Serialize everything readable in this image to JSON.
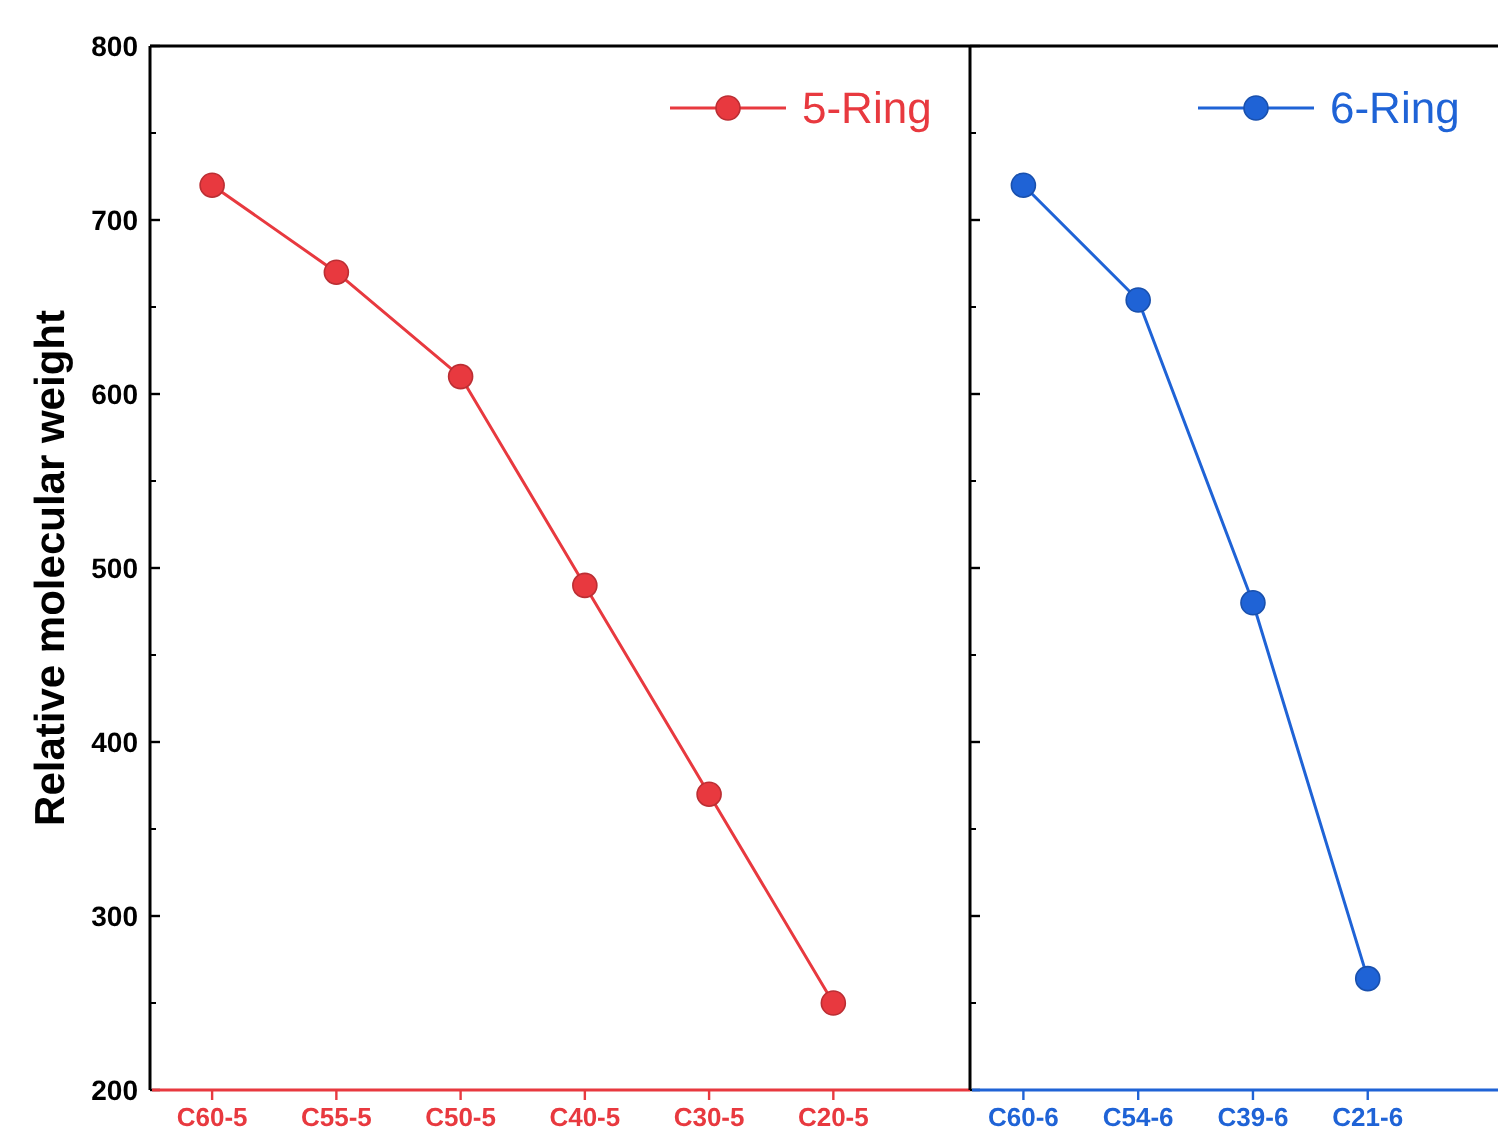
{
  "chart_data": [
    {
      "type": "line",
      "ylabel": "Relative molecular weight",
      "categories": [
        "C60-5",
        "C55-5",
        "C50-5",
        "C40-5",
        "C30-5",
        "C20-5"
      ],
      "series": [
        {
          "name": "5-Ring",
          "color": "#e8393f",
          "values": [
            720,
            670,
            610,
            490,
            370,
            250
          ]
        }
      ],
      "ylim": [
        200,
        800
      ],
      "yticks": [
        200,
        300,
        400,
        500,
        600,
        700,
        800
      ],
      "marker": "circle",
      "legend": "top right",
      "grid": false
    },
    {
      "type": "line",
      "categories": [
        "C60-6",
        "C54-6",
        "C39-6",
        "C21-6"
      ],
      "series": [
        {
          "name": "6-Ring",
          "color": "#1f63d6",
          "values": [
            720,
            654,
            480,
            264
          ]
        }
      ],
      "ylim": [
        200,
        800
      ],
      "yticks": [
        200,
        300,
        400,
        500,
        600,
        700,
        800
      ],
      "tick_labels": "x",
      "marker": "circle",
      "legend": "top right",
      "grid": false
    }
  ]
}
